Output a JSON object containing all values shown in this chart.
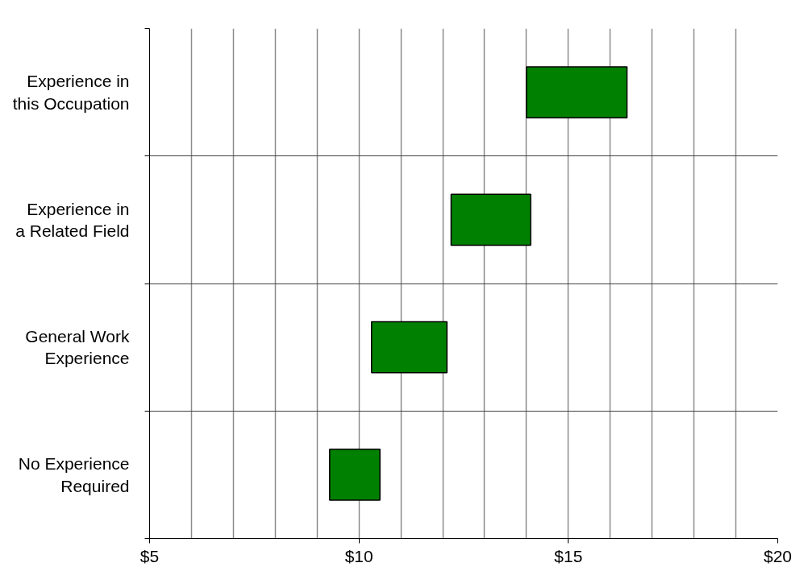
{
  "chart_data": {
    "type": "bar",
    "orientation": "horizontal",
    "categories": [
      "Experience in this Occupation",
      "Experience in a Related Field",
      "General Work Experience",
      "No Experience Required"
    ],
    "base": [
      14.0,
      12.2,
      10.3,
      9.3
    ],
    "values": [
      2.4,
      1.9,
      1.8,
      1.2
    ],
    "color": "#008000",
    "xlim": [
      5,
      20
    ],
    "xticks": [
      {
        "value": 5,
        "label": "$5"
      },
      {
        "value": 6,
        "label": null
      },
      {
        "value": 7,
        "label": null
      },
      {
        "value": 8,
        "label": null
      },
      {
        "value": 9,
        "label": null
      },
      {
        "value": 10,
        "label": "$10"
      },
      {
        "value": 11,
        "label": null
      },
      {
        "value": 12,
        "label": null
      },
      {
        "value": 13,
        "label": null
      },
      {
        "value": 14,
        "label": null
      },
      {
        "value": 15,
        "label": "$15"
      },
      {
        "value": 16,
        "label": null
      },
      {
        "value": 17,
        "label": null
      },
      {
        "value": 18,
        "label": null
      },
      {
        "value": 19,
        "label": null
      },
      {
        "value": 20,
        "label": "$20"
      }
    ],
    "grid": true
  }
}
